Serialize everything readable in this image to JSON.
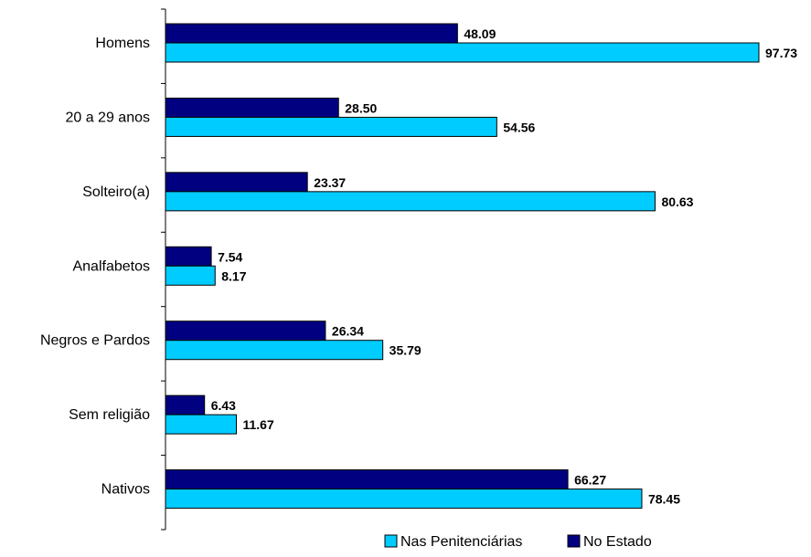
{
  "chart_data": {
    "type": "bar",
    "orientation": "horizontal",
    "title": "",
    "xlabel": "",
    "ylabel": "",
    "categories": [
      "Homens",
      "20 a 29 anos",
      "Solteiro(a)",
      "Analfabetos",
      "Negros e Pardos",
      "Sem religião",
      "Nativos"
    ],
    "series": [
      {
        "name": "No Estado",
        "color": "#000080",
        "values": [
          48.09,
          28.5,
          23.37,
          7.54,
          26.34,
          6.43,
          66.27
        ],
        "labels": [
          "48.09",
          "28.50",
          "23.37",
          "7.54",
          "26.34",
          "6.43",
          "66.27"
        ]
      },
      {
        "name": "Nas Penitenciárias",
        "color": "#00CCFF",
        "values": [
          97.73,
          54.56,
          80.63,
          8.17,
          35.79,
          11.67,
          78.45
        ],
        "labels": [
          "97.73",
          "54.56",
          "80.63",
          "8.17",
          "35.79",
          "11.67",
          "78.45"
        ]
      }
    ],
    "xlim": [
      0,
      100
    ],
    "grid": false,
    "legend": {
      "position": "bottom-right",
      "order": [
        "Nas Penitenciárias",
        "No Estado"
      ]
    }
  }
}
